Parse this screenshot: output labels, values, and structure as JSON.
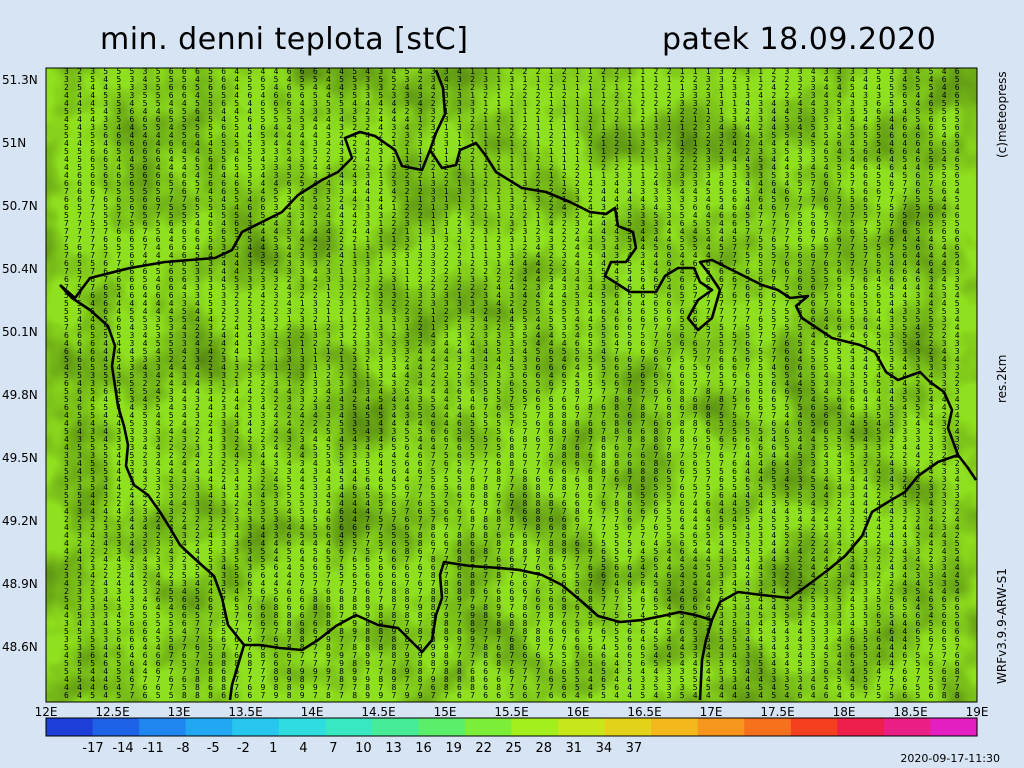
{
  "title_left": "min. denni teplota [stC]",
  "title_right": "patek 18.09.2020",
  "credit": "(c)meteopress",
  "resolution": "res.2km",
  "model": "WRFv3.9.9-ARW-S1",
  "timestamp": "2020-09-17-11:30",
  "lat_labels": [
    "51.3N",
    "51N",
    "50.7N",
    "50.4N",
    "50.1N",
    "49.8N",
    "49.5N",
    "49.2N",
    "48.9N",
    "48.6N"
  ],
  "lon_labels": [
    "12E",
    "12.5E",
    "13E",
    "13.5E",
    "14E",
    "14.5E",
    "15E",
    "15.5E",
    "16E",
    "16.5E",
    "17E",
    "17.5E",
    "18E",
    "18.5E",
    "19E"
  ],
  "colorbar_labels": [
    "-17",
    "-14",
    "-11",
    "-8",
    "-5",
    "-2",
    "1",
    "4",
    "7",
    "10",
    "13",
    "16",
    "19",
    "22",
    "25",
    "28",
    "31",
    "34",
    "37"
  ],
  "colorbar_colors": [
    "#1d3fd8",
    "#1e62e8",
    "#1f86f0",
    "#22a8f2",
    "#27c6ef",
    "#2fdde0",
    "#38e8c2",
    "#46ec98",
    "#5aee6a",
    "#7cee38",
    "#a4ee1e",
    "#c9e61a",
    "#e4d21a",
    "#f2b81c",
    "#f7961d",
    "#f7701e",
    "#f4401f",
    "#ee1f4a",
    "#ea1f86",
    "#e41fc2"
  ],
  "map": {
    "field_color": "#8fe01e",
    "warm_color": "#c7de22",
    "cool_color": "#5ed83e",
    "border_color": "#000000"
  }
}
